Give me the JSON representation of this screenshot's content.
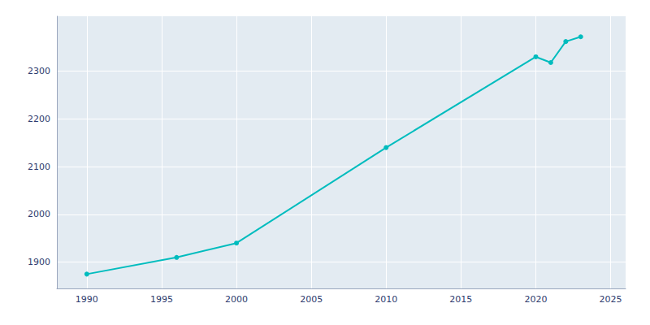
{
  "chart_data": {
    "type": "line",
    "x": [
      1990,
      1996,
      2000,
      2010,
      2020,
      2021,
      2022,
      2023
    ],
    "values": [
      1875,
      1910,
      1940,
      2140,
      2330,
      2318,
      2362,
      2372
    ],
    "color": "#00BCBE",
    "marker": "circle",
    "xlim": [
      1988,
      2026
    ],
    "ylim": [
      1845,
      2415
    ],
    "xticks": [
      1990,
      1995,
      2000,
      2005,
      2010,
      2015,
      2020,
      2025
    ],
    "yticks": [
      1900,
      2000,
      2100,
      2200,
      2300
    ],
    "grid": true
  }
}
